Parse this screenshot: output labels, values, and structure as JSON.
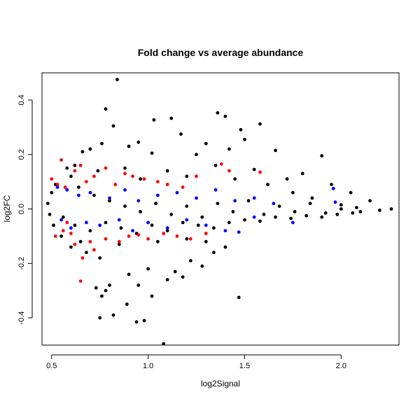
{
  "chart_data": {
    "type": "scatter",
    "title": "Fold change vs average abundance",
    "xlabel": "log2Signal",
    "ylabel": "log2FC",
    "xlim": [
      0.45,
      2.3
    ],
    "ylim": [
      -0.5,
      0.5
    ],
    "x_ticks": [
      0.5,
      1.0,
      1.5,
      2.0
    ],
    "x_tick_labels": [
      "0.5",
      "1.0",
      "1.5",
      "2.0"
    ],
    "y_ticks": [
      -0.4,
      -0.2,
      0.0,
      0.2,
      0.4
    ],
    "y_tick_labels": [
      "-0.4",
      "-0.2",
      "0.0",
      "0.2",
      "0.4"
    ],
    "grid": false,
    "series": [
      {
        "color": "#000000",
        "points": [
          [
            0.84,
            0.475
          ],
          [
            0.78,
            0.367
          ],
          [
            0.82,
            0.305
          ],
          [
            1.03,
            0.327
          ],
          [
            1.12,
            0.333
          ],
          [
            1.36,
            0.353
          ],
          [
            1.4,
            0.34
          ],
          [
            1.58,
            0.312
          ],
          [
            1.48,
            0.291
          ],
          [
            1.17,
            0.275
          ],
          [
            1.5,
            0.255
          ],
          [
            1.42,
            0.22
          ],
          [
            1.66,
            0.215
          ],
          [
            1.9,
            0.195
          ],
          [
            1.8,
            0.13
          ],
          [
            0.66,
            0.21
          ],
          [
            0.7,
            0.22
          ],
          [
            0.76,
            0.24
          ],
          [
            0.9,
            0.23
          ],
          [
            0.95,
            0.245
          ],
          [
            1.02,
            0.205
          ],
          [
            1.3,
            0.24
          ],
          [
            1.25,
            0.2
          ],
          [
            0.62,
            0.16
          ],
          [
            0.58,
            0.15
          ],
          [
            0.74,
            0.14
          ],
          [
            0.88,
            0.15
          ],
          [
            1.1,
            0.14
          ],
          [
            1.35,
            0.16
          ],
          [
            1.55,
            0.145
          ],
          [
            1.72,
            0.11
          ],
          [
            1.95,
            0.09
          ],
          [
            2.05,
            0.06
          ],
          [
            2.15,
            0.03
          ],
          [
            2.26,
            0.0
          ],
          [
            2.2,
            -0.005
          ],
          [
            2.1,
            -0.01
          ],
          [
            2.0,
            0.0
          ],
          [
            1.85,
            0.04
          ],
          [
            1.75,
            0.06
          ],
          [
            1.62,
            0.09
          ],
          [
            1.45,
            0.11
          ],
          [
            1.2,
            0.12
          ],
          [
            0.96,
            0.11
          ],
          [
            0.52,
            0.09
          ],
          [
            0.5,
            0.06
          ],
          [
            0.48,
            0.02
          ],
          [
            0.49,
            -0.02
          ],
          [
            0.51,
            -0.06
          ],
          [
            0.55,
            -0.1
          ],
          [
            0.6,
            -0.14
          ],
          [
            0.68,
            -0.16
          ],
          [
            0.75,
            -0.18
          ],
          [
            0.73,
            -0.29
          ],
          [
            0.76,
            -0.32
          ],
          [
            0.78,
            -0.3
          ],
          [
            0.8,
            -0.28
          ],
          [
            0.75,
            -0.4
          ],
          [
            0.82,
            -0.39
          ],
          [
            0.89,
            -0.35
          ],
          [
            0.94,
            -0.415
          ],
          [
            0.98,
            -0.41
          ],
          [
            0.95,
            -0.28
          ],
          [
            0.9,
            -0.24
          ],
          [
            1.0,
            -0.22
          ],
          [
            1.02,
            -0.32
          ],
          [
            1.08,
            -0.495
          ],
          [
            1.1,
            -0.26
          ],
          [
            1.14,
            -0.23
          ],
          [
            1.18,
            -0.25
          ],
          [
            1.22,
            -0.19
          ],
          [
            1.28,
            -0.21
          ],
          [
            1.34,
            -0.16
          ],
          [
            1.47,
            -0.325
          ],
          [
            1.4,
            -0.14
          ],
          [
            1.3,
            -0.12
          ],
          [
            1.2,
            -0.11
          ],
          [
            1.05,
            -0.12
          ],
          [
            0.85,
            -0.13
          ],
          [
            0.65,
            -0.12
          ],
          [
            0.6,
            0.12
          ],
          [
            0.64,
            0.08
          ],
          [
            0.72,
            0.05
          ],
          [
            0.8,
            0.03
          ],
          [
            0.88,
            0.01
          ],
          [
            0.96,
            -0.01
          ],
          [
            1.04,
            0.02
          ],
          [
            1.12,
            -0.02
          ],
          [
            1.2,
            0.01
          ],
          [
            1.28,
            -0.03
          ],
          [
            1.36,
            0.02
          ],
          [
            1.44,
            -0.01
          ],
          [
            1.52,
            0.03
          ],
          [
            1.6,
            -0.02
          ],
          [
            1.68,
            0.01
          ],
          [
            1.76,
            -0.01
          ],
          [
            1.84,
            0.02
          ],
          [
            1.92,
            -0.015
          ],
          [
            2.0,
            0.015
          ],
          [
            2.08,
            0.005
          ],
          [
            0.56,
            -0.03
          ],
          [
            0.62,
            -0.06
          ],
          [
            0.7,
            -0.08
          ],
          [
            0.78,
            -0.05
          ],
          [
            0.86,
            -0.07
          ],
          [
            0.94,
            -0.09
          ],
          [
            1.02,
            -0.06
          ],
          [
            1.1,
            -0.08
          ],
          [
            1.18,
            -0.05
          ],
          [
            1.26,
            -0.06
          ],
          [
            1.34,
            -0.07
          ],
          [
            1.42,
            -0.05
          ],
          [
            1.5,
            -0.04
          ],
          [
            1.58,
            -0.045
          ],
          [
            1.66,
            -0.03
          ],
          [
            1.74,
            -0.035
          ],
          [
            1.82,
            -0.025
          ],
          [
            1.9,
            -0.03
          ],
          [
            1.98,
            -0.02
          ],
          [
            2.06,
            -0.015
          ]
        ]
      },
      {
        "color": "#ff0000",
        "points": [
          [
            0.55,
            0.18
          ],
          [
            0.5,
            0.11
          ],
          [
            0.53,
            0.09
          ],
          [
            0.57,
            0.08
          ],
          [
            0.62,
            0.14
          ],
          [
            0.65,
            0.16
          ],
          [
            0.68,
            0.1
          ],
          [
            0.72,
            0.12
          ],
          [
            0.78,
            0.15
          ],
          [
            0.83,
            0.09
          ],
          [
            0.88,
            0.13
          ],
          [
            0.92,
            0.12
          ],
          [
            0.98,
            0.11
          ],
          [
            1.05,
            0.1
          ],
          [
            1.1,
            0.09
          ],
          [
            1.18,
            0.08
          ],
          [
            1.25,
            0.12
          ],
          [
            1.38,
            0.165
          ],
          [
            1.42,
            0.14
          ],
          [
            1.58,
            0.135
          ],
          [
            0.52,
            -0.1
          ],
          [
            0.56,
            -0.08
          ],
          [
            0.6,
            -0.09
          ],
          [
            0.62,
            -0.13
          ],
          [
            0.66,
            -0.18
          ],
          [
            0.65,
            -0.265
          ],
          [
            0.72,
            -0.15
          ],
          [
            0.78,
            -0.11
          ],
          [
            0.85,
            -0.12
          ],
          [
            0.9,
            -0.1
          ],
          [
            0.95,
            -0.095
          ],
          [
            1.0,
            -0.11
          ],
          [
            1.08,
            -0.09
          ],
          [
            1.15,
            -0.1
          ],
          [
            1.22,
            -0.11
          ],
          [
            1.3,
            -0.09
          ],
          [
            0.7,
            -0.12
          ],
          [
            0.58,
            -0.05
          ]
        ]
      },
      {
        "color": "#0000ff",
        "points": [
          [
            0.53,
            0.08
          ],
          [
            0.58,
            0.07
          ],
          [
            0.64,
            0.05
          ],
          [
            0.7,
            0.06
          ],
          [
            0.8,
            0.04
          ],
          [
            0.88,
            0.07
          ],
          [
            0.95,
            0.03
          ],
          [
            1.05,
            0.05
          ],
          [
            1.15,
            0.06
          ],
          [
            1.25,
            0.04
          ],
          [
            1.35,
            0.07
          ],
          [
            1.45,
            0.03
          ],
          [
            1.55,
            0.04
          ],
          [
            1.65,
            0.02
          ],
          [
            1.96,
            0.075
          ],
          [
            1.97,
            0.025
          ],
          [
            0.55,
            -0.04
          ],
          [
            0.6,
            -0.07
          ],
          [
            0.68,
            -0.05
          ],
          [
            0.75,
            -0.06
          ],
          [
            0.85,
            -0.04
          ],
          [
            0.92,
            -0.08
          ],
          [
            1.0,
            -0.05
          ],
          [
            1.1,
            -0.07
          ],
          [
            1.2,
            -0.04
          ],
          [
            1.3,
            -0.06
          ],
          [
            1.4,
            -0.08
          ],
          [
            1.47,
            -0.085
          ],
          [
            1.55,
            -0.03
          ],
          [
            1.75,
            -0.05
          ]
        ]
      }
    ]
  }
}
